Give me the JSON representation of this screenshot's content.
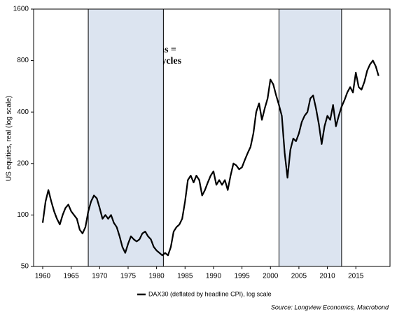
{
  "chart_data": {
    "type": "line",
    "y_label": "US equities, real (log scale)",
    "annotation": [
      "blue shaded areas =",
      "commodity bull cycles"
    ],
    "source": "Source: Longview Economics, Macrobond",
    "log_scale": true,
    "shaded_periods": [
      [
        1968,
        1981.2
      ],
      [
        2001.5,
        2012.5
      ]
    ],
    "shade_color": "#dce4f0",
    "xlim": [
      1958.4,
      2021
    ],
    "xticks": [
      1960,
      1965,
      1970,
      1975,
      1980,
      1985,
      1990,
      1995,
      2000,
      2005,
      2010,
      2015
    ],
    "ylim": [
      50,
      1600
    ],
    "yticks": [
      50,
      100,
      200,
      400,
      800,
      1600
    ],
    "x": [
      1960,
      1960.5,
      1961,
      1961.5,
      1962,
      1962.5,
      1963,
      1963.5,
      1964,
      1964.5,
      1965,
      1965.5,
      1966,
      1966.5,
      1967,
      1967.5,
      1968,
      1968.5,
      1969,
      1969.5,
      1970,
      1970.5,
      1971,
      1971.5,
      1972,
      1972.5,
      1973,
      1973.5,
      1974,
      1974.5,
      1975,
      1975.5,
      1976,
      1976.5,
      1977,
      1977.5,
      1978,
      1978.5,
      1979,
      1979.5,
      1980,
      1980.5,
      1981,
      1981.5,
      1982,
      1982.5,
      1983,
      1983.5,
      1984,
      1984.5,
      1985,
      1985.5,
      1986,
      1986.5,
      1987,
      1987.5,
      1988,
      1988.5,
      1989,
      1989.5,
      1990,
      1990.5,
      1991,
      1991.5,
      1992,
      1992.5,
      1993,
      1993.5,
      1994,
      1994.5,
      1995,
      1995.5,
      1996,
      1996.5,
      1997,
      1997.5,
      1998,
      1998.5,
      1999,
      1999.5,
      2000,
      2000.5,
      2001,
      2001.5,
      2002,
      2002.5,
      2003,
      2003.5,
      2004,
      2004.5,
      2005,
      2005.5,
      2006,
      2006.5,
      2007,
      2007.5,
      2008,
      2008.5,
      2009,
      2009.5,
      2010,
      2010.5,
      2011,
      2011.5,
      2012,
      2012.5,
      2013,
      2013.5,
      2014,
      2014.5,
      2015,
      2015.5,
      2016,
      2016.5,
      2017,
      2017.5,
      2018,
      2018.5,
      2019
    ],
    "series": [
      {
        "name": "DAX30 (deflated by headline CPI), log scale",
        "color": "#000000",
        "values": [
          90,
          120,
          140,
          120,
          105,
          95,
          88,
          100,
          110,
          115,
          105,
          100,
          95,
          82,
          78,
          85,
          105,
          120,
          130,
          125,
          110,
          95,
          100,
          95,
          100,
          90,
          85,
          75,
          65,
          60,
          68,
          75,
          72,
          70,
          72,
          78,
          80,
          75,
          72,
          65,
          62,
          60,
          58,
          60,
          58,
          65,
          80,
          85,
          88,
          95,
          120,
          160,
          170,
          155,
          170,
          160,
          130,
          140,
          155,
          170,
          180,
          150,
          160,
          150,
          160,
          140,
          170,
          200,
          195,
          185,
          190,
          210,
          230,
          250,
          300,
          400,
          450,
          360,
          420,
          480,
          620,
          580,
          500,
          440,
          380,
          230,
          165,
          240,
          280,
          270,
          300,
          350,
          380,
          400,
          480,
          500,
          420,
          340,
          260,
          330,
          380,
          360,
          440,
          330,
          380,
          430,
          470,
          520,
          560,
          520,
          680,
          560,
          540,
          600,
          700,
          760,
          800,
          740,
          650
        ]
      }
    ]
  }
}
